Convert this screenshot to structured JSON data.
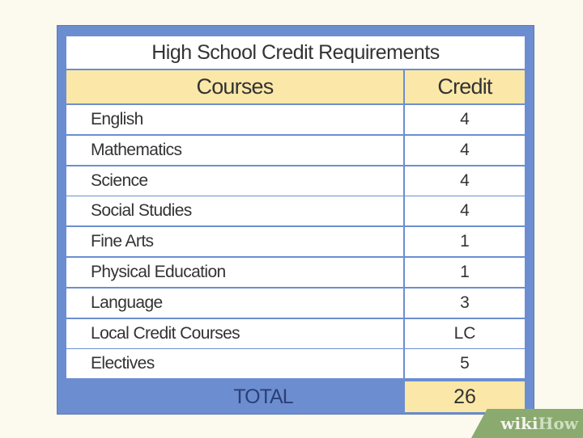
{
  "table": {
    "title": "High School Credit Requirements",
    "headers": [
      "Courses",
      "Credit"
    ],
    "rows": [
      {
        "course": "English",
        "credit": "4"
      },
      {
        "course": "Mathematics",
        "credit": "4"
      },
      {
        "course": "Science",
        "credit": "4"
      },
      {
        "course": "Social Studies",
        "credit": "4"
      },
      {
        "course": "Fine Arts",
        "credit": "1"
      },
      {
        "course": "Physical Education",
        "credit": "1"
      },
      {
        "course": "Language",
        "credit": "3"
      },
      {
        "course": "Local Credit Courses",
        "credit": "LC"
      },
      {
        "course": "Electives",
        "credit": "5"
      }
    ],
    "total_label": "TOTAL",
    "total_value": "26"
  },
  "watermark": {
    "part1": "wiki",
    "part2": "How"
  },
  "colors": {
    "frame": "#6c8ed0",
    "header": "#fbe8a8",
    "background": "#fcfaee"
  }
}
